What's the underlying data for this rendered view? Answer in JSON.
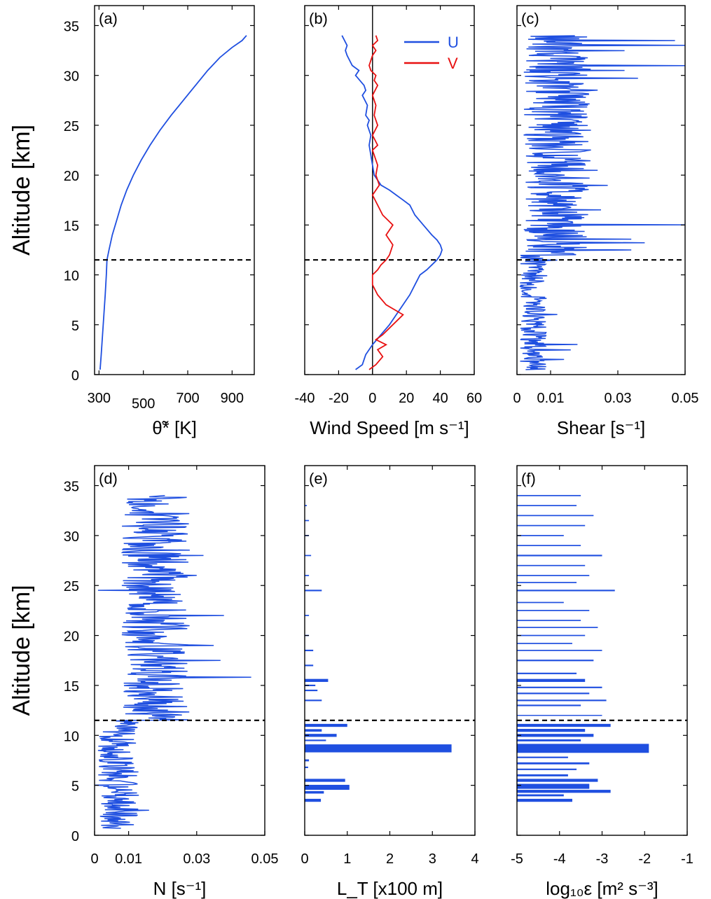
{
  "colors": {
    "blue": "#1f4fe0",
    "red": "#e81010",
    "axis": "#000000"
  },
  "chart_data": [
    {
      "panel": "(a)",
      "type": "line",
      "xlabel": "θ̃* [K]",
      "ylabel": "Altitude  [km]",
      "xlim": [
        280,
        1000
      ],
      "ylim": [
        0,
        37
      ],
      "xticks": [
        {
          "v": 300,
          "t": "300"
        },
        {
          "v": 500,
          "t": "500"
        },
        {
          "v": 700,
          "t": "700"
        },
        {
          "v": 900,
          "t": "900"
        }
      ],
      "yticks": [
        0,
        5,
        10,
        15,
        20,
        25,
        30,
        35
      ],
      "tropopause_km": 11.5,
      "series": [
        {
          "color": "blue",
          "x": [
            305,
            310,
            316,
            322,
            328,
            333,
            336,
            345,
            360,
            380,
            400,
            425,
            455,
            490,
            530,
            575,
            625,
            680,
            735,
            790,
            845,
            900,
            945,
            965
          ],
          "y": [
            0.5,
            2,
            4,
            6,
            8,
            10,
            11.5,
            12.5,
            14,
            15.5,
            17,
            18.5,
            20,
            21.5,
            23,
            24.5,
            26,
            27.5,
            29,
            30.5,
            31.8,
            32.8,
            33.5,
            34
          ]
        }
      ]
    },
    {
      "panel": "(b)",
      "type": "line",
      "xlabel": "Wind Speed  [m s⁻¹]",
      "ylabel": "",
      "xlim": [
        -40,
        60
      ],
      "ylim": [
        0,
        37
      ],
      "xticks": [
        {
          "v": -40,
          "t": "-40"
        },
        {
          "v": -20,
          "t": "-20"
        },
        {
          "v": 0,
          "t": "0"
        },
        {
          "v": 20,
          "t": "20"
        },
        {
          "v": 40,
          "t": "40"
        },
        {
          "v": 60,
          "t": "60"
        }
      ],
      "yticks": [
        0,
        5,
        10,
        15,
        20,
        25,
        30,
        35
      ],
      "zero_line": 0,
      "tropopause_km": 11.5,
      "legend": {
        "position": "top-right",
        "entries": [
          {
            "name": "U",
            "color": "blue"
          },
          {
            "name": "V",
            "color": "red"
          }
        ]
      },
      "series": [
        {
          "name": "U",
          "color": "blue",
          "x": [
            -10,
            -6,
            -4,
            0,
            5,
            10,
            14,
            18,
            22,
            25,
            28,
            32,
            35,
            38,
            40,
            41,
            40,
            38,
            35,
            30,
            25,
            22,
            18,
            14,
            10,
            5,
            3,
            1,
            0,
            -1,
            -2,
            -1,
            -3,
            -2,
            -4,
            -3,
            -6,
            -4,
            -5,
            -10,
            -8,
            -12,
            -15,
            -16,
            -15,
            -18
          ],
          "y": [
            0.5,
            1,
            2,
            3,
            4,
            5,
            6,
            7,
            8,
            9,
            10,
            10.5,
            11,
            11.5,
            12,
            12.5,
            13,
            13.5,
            14,
            15,
            16,
            17,
            17.5,
            18,
            18.5,
            19,
            19.5,
            20,
            21,
            22,
            23,
            24,
            25,
            25.5,
            26,
            27,
            28,
            28.5,
            29,
            30,
            30.5,
            31,
            32,
            32.5,
            33,
            34
          ]
        },
        {
          "name": "V",
          "color": "red",
          "x": [
            -2,
            2,
            6,
            3,
            8,
            2,
            6,
            12,
            18,
            13,
            8,
            3,
            0,
            0,
            3,
            5,
            8,
            10,
            12,
            8,
            12,
            6,
            3,
            0,
            4,
            2,
            3,
            1,
            0,
            3,
            0,
            3,
            1,
            2,
            0,
            3,
            1,
            2,
            -1,
            -2,
            0,
            2,
            0,
            3,
            2
          ],
          "y": [
            0.5,
            1,
            1.8,
            2.5,
            3,
            3.5,
            4,
            5,
            6,
            6.5,
            7,
            8,
            9,
            10,
            10.5,
            11,
            11.5,
            12,
            13,
            14,
            15,
            16,
            17,
            18,
            19,
            20,
            21,
            22,
            22.5,
            23,
            24,
            25,
            26,
            27,
            28,
            29,
            29.5,
            30,
            30.5,
            31,
            32,
            32.5,
            33,
            33.5,
            34
          ]
        }
      ]
    },
    {
      "panel": "(c)",
      "type": "line",
      "xlabel": "Shear  [s⁻¹]",
      "ylabel": "",
      "xlim": [
        0,
        0.05
      ],
      "ylim": [
        0,
        37
      ],
      "xticks": [
        {
          "v": 0,
          "t": "0"
        },
        {
          "v": 0.01,
          "t": "0.01"
        },
        {
          "v": 0.03,
          "t": "0.03"
        },
        {
          "v": 0.05,
          "t": "0.05"
        }
      ],
      "yticks": [
        0,
        5,
        10,
        15,
        20,
        25,
        30,
        35
      ],
      "tropopause_km": 11.5,
      "noise": {
        "seed": 3,
        "zmin": 0.5,
        "zmax": 34,
        "step": 0.06,
        "bands": [
          {
            "z0": 0,
            "z1": 12,
            "lo": 0.0008,
            "hi": 0.009
          },
          {
            "z0": 12,
            "z1": 40,
            "lo": 0.002,
            "hi": 0.022
          }
        ],
        "spikes": [
          [
            1.5,
            0.014
          ],
          [
            2.5,
            0.016
          ],
          [
            3.0,
            0.018
          ],
          [
            6.0,
            0.012
          ],
          [
            10.5,
            0.008
          ],
          [
            11.5,
            0.012
          ],
          [
            12.5,
            0.034
          ],
          [
            13.2,
            0.038
          ],
          [
            13.6,
            0.034
          ],
          [
            15.0,
            0.05
          ],
          [
            16.5,
            0.025
          ],
          [
            19.0,
            0.027
          ],
          [
            20.5,
            0.024
          ],
          [
            22.5,
            0.022
          ],
          [
            24.5,
            0.022
          ],
          [
            26.5,
            0.016
          ],
          [
            28.5,
            0.024
          ],
          [
            29.7,
            0.036
          ],
          [
            30.5,
            0.032
          ],
          [
            31.0,
            0.05
          ],
          [
            32.5,
            0.032
          ],
          [
            33.0,
            0.05
          ],
          [
            33.5,
            0.047
          ]
        ]
      }
    },
    {
      "panel": "(d)",
      "type": "line",
      "xlabel": "N  [s⁻¹]",
      "ylabel": "Altitude  [km]",
      "xlim": [
        0,
        0.05
      ],
      "ylim": [
        0,
        37
      ],
      "xticks": [
        {
          "v": 0,
          "t": "0"
        },
        {
          "v": 0.01,
          "t": "0.01"
        },
        {
          "v": 0.03,
          "t": "0.03"
        },
        {
          "v": 0.05,
          "t": "0.05"
        }
      ],
      "yticks": [
        0,
        5,
        10,
        15,
        20,
        25,
        30,
        35
      ],
      "tropopause_km": 11.5,
      "noise": {
        "seed": 7,
        "zmin": 0.7,
        "zmax": 34,
        "step": 0.06,
        "bands": [
          {
            "z0": 0,
            "z1": 11.5,
            "lo": 0.001,
            "hi": 0.013
          },
          {
            "z0": 11.5,
            "z1": 40,
            "lo": 0.008,
            "hi": 0.028
          }
        ],
        "spikes": [
          [
            2.5,
            0.016
          ],
          [
            4.0,
            0.013
          ],
          [
            5.0,
            0.0
          ],
          [
            15.8,
            0.046
          ],
          [
            17.5,
            0.037
          ],
          [
            19.0,
            0.035
          ],
          [
            22.0,
            0.038
          ],
          [
            24.5,
            0.001
          ],
          [
            26.0,
            0.03
          ],
          [
            28.0,
            0.032
          ],
          [
            31.5,
            0.025
          ]
        ]
      }
    },
    {
      "panel": "(e)",
      "type": "bar",
      "xlabel": "L_T [x100 m]",
      "ylabel": "",
      "xlim": [
        0,
        4
      ],
      "ylim": [
        0,
        37
      ],
      "xticks": [
        {
          "v": 0,
          "t": "0"
        },
        {
          "v": 1,
          "t": "1"
        },
        {
          "v": 2,
          "t": "2"
        },
        {
          "v": 3,
          "t": "3"
        },
        {
          "v": 4,
          "t": "4"
        }
      ],
      "yticks": [
        0,
        5,
        10,
        15,
        20,
        25,
        30,
        35
      ],
      "tropopause_km": 11.5,
      "bars": [
        {
          "z": 3.5,
          "dz": 0.3,
          "v": 0.38
        },
        {
          "z": 4.3,
          "dz": 0.25,
          "v": 0.45
        },
        {
          "z": 4.8,
          "dz": 0.5,
          "v": 1.05
        },
        {
          "z": 5.5,
          "dz": 0.3,
          "v": 0.95
        },
        {
          "z": 6.8,
          "dz": 0.15,
          "v": 0.08
        },
        {
          "z": 7.5,
          "dz": 0.2,
          "v": 0.1
        },
        {
          "z": 8.7,
          "dz": 0.8,
          "v": 3.45
        },
        {
          "z": 9.5,
          "dz": 0.15,
          "v": 0.5
        },
        {
          "z": 10.0,
          "dz": 0.3,
          "v": 0.75
        },
        {
          "z": 10.5,
          "dz": 0.25,
          "v": 0.4
        },
        {
          "z": 11.0,
          "dz": 0.3,
          "v": 1.0
        },
        {
          "z": 13.5,
          "dz": 0.15,
          "v": 0.4
        },
        {
          "z": 14.5,
          "dz": 0.15,
          "v": 0.3
        },
        {
          "z": 15.0,
          "dz": 0.15,
          "v": 0.25
        },
        {
          "z": 15.5,
          "dz": 0.3,
          "v": 0.55
        },
        {
          "z": 17.0,
          "dz": 0.15,
          "v": 0.2
        },
        {
          "z": 18.5,
          "dz": 0.15,
          "v": 0.2
        },
        {
          "z": 20.0,
          "dz": 0.12,
          "v": 0.1
        },
        {
          "z": 22.0,
          "dz": 0.12,
          "v": 0.1
        },
        {
          "z": 24.5,
          "dz": 0.15,
          "v": 0.4
        },
        {
          "z": 26.0,
          "dz": 0.12,
          "v": 0.1
        },
        {
          "z": 28.0,
          "dz": 0.12,
          "v": 0.15
        },
        {
          "z": 30.0,
          "dz": 0.12,
          "v": 0.1
        },
        {
          "z": 31.5,
          "dz": 0.12,
          "v": 0.1
        },
        {
          "z": 33.0,
          "dz": 0.12,
          "v": 0.05
        }
      ]
    },
    {
      "panel": "(f)",
      "type": "bar",
      "xlabel": "log₁₀ε  [m² s⁻³]",
      "ylabel": "",
      "xlim": [
        -5,
        -1
      ],
      "ylim": [
        0,
        37
      ],
      "xticks": [
        {
          "v": -5,
          "t": "-5"
        },
        {
          "v": -4,
          "t": "-4"
        },
        {
          "v": -3,
          "t": "-3"
        },
        {
          "v": -2,
          "t": "-2"
        },
        {
          "v": -1,
          "t": "-1"
        }
      ],
      "yticks": [
        0,
        5,
        10,
        15,
        20,
        25,
        30,
        35
      ],
      "tropopause_km": 11.5,
      "bars": [
        {
          "z": 3.5,
          "dz": 0.3,
          "v": -3.7
        },
        {
          "z": 4.0,
          "dz": 0.2,
          "v": -3.9
        },
        {
          "z": 4.4,
          "dz": 0.3,
          "v": -2.8
        },
        {
          "z": 4.9,
          "dz": 0.5,
          "v": -3.3
        },
        {
          "z": 5.5,
          "dz": 0.3,
          "v": -3.1
        },
        {
          "z": 6.0,
          "dz": 0.2,
          "v": -3.8
        },
        {
          "z": 6.6,
          "dz": 0.15,
          "v": -3.6
        },
        {
          "z": 7.2,
          "dz": 0.2,
          "v": -3.3
        },
        {
          "z": 7.8,
          "dz": 0.15,
          "v": -3.8
        },
        {
          "z": 8.7,
          "dz": 0.9,
          "v": -1.9
        },
        {
          "z": 9.5,
          "dz": 0.2,
          "v": -3.5
        },
        {
          "z": 10.0,
          "dz": 0.3,
          "v": -3.2
        },
        {
          "z": 10.5,
          "dz": 0.3,
          "v": -3.4
        },
        {
          "z": 11.0,
          "dz": 0.3,
          "v": -2.8
        },
        {
          "z": 12.0,
          "dz": 0.1,
          "v": -3.0
        },
        {
          "z": 13.0,
          "dz": 0.15,
          "v": -3.5
        },
        {
          "z": 13.5,
          "dz": 0.15,
          "v": -2.9
        },
        {
          "z": 14.2,
          "dz": 0.15,
          "v": -3.3
        },
        {
          "z": 14.8,
          "dz": 0.15,
          "v": -3.0
        },
        {
          "z": 15.5,
          "dz": 0.3,
          "v": -3.4
        },
        {
          "z": 16.2,
          "dz": 0.15,
          "v": -3.6
        },
        {
          "z": 17.5,
          "dz": 0.15,
          "v": -3.2
        },
        {
          "z": 18.5,
          "dz": 0.12,
          "v": -3.0
        },
        {
          "z": 19.2,
          "dz": 0.12,
          "v": -3.7
        },
        {
          "z": 20.0,
          "dz": 0.12,
          "v": -3.4
        },
        {
          "z": 20.8,
          "dz": 0.12,
          "v": -3.1
        },
        {
          "z": 21.5,
          "dz": 0.12,
          "v": -3.5
        },
        {
          "z": 22.5,
          "dz": 0.12,
          "v": -3.3
        },
        {
          "z": 23.3,
          "dz": 0.12,
          "v": -3.9
        },
        {
          "z": 24.5,
          "dz": 0.15,
          "v": -2.7
        },
        {
          "z": 25.3,
          "dz": 0.12,
          "v": -3.6
        },
        {
          "z": 26.0,
          "dz": 0.12,
          "v": -3.3
        },
        {
          "z": 27.0,
          "dz": 0.12,
          "v": -3.4
        },
        {
          "z": 28.0,
          "dz": 0.15,
          "v": -3.0
        },
        {
          "z": 29.0,
          "dz": 0.12,
          "v": -3.5
        },
        {
          "z": 30.0,
          "dz": 0.12,
          "v": -3.9
        },
        {
          "z": 31.0,
          "dz": 0.12,
          "v": -3.4
        },
        {
          "z": 32.0,
          "dz": 0.12,
          "v": -3.2
        },
        {
          "z": 33.0,
          "dz": 0.12,
          "v": -3.6
        },
        {
          "z": 34.0,
          "dz": 0.12,
          "v": -3.5
        }
      ]
    }
  ]
}
